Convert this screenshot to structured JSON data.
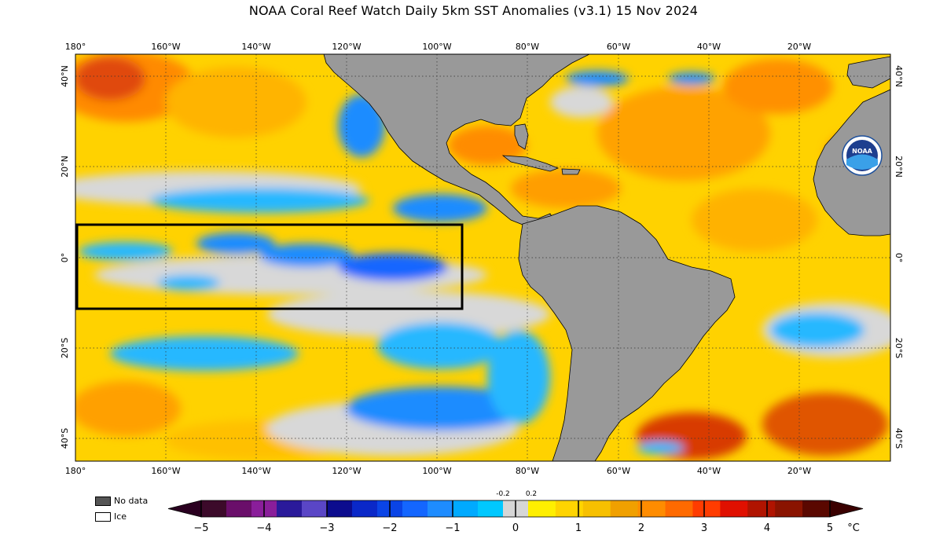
{
  "title": "NOAA Coral Reef Watch Daily 5km SST Anomalies  (v3.1)   15 Nov 2024",
  "logo_text": "NOAA",
  "lon_ticks": [
    "180°",
    "160°W",
    "140°W",
    "120°W",
    "100°W",
    "80°W",
    "60°W",
    "40°W",
    "20°W"
  ],
  "lat_ticks": [
    "40°N",
    "20°N",
    "0°",
    "20°S",
    "40°S"
  ],
  "colorbar": {
    "ticks": [
      "−5",
      "−4",
      "−3",
      "−2",
      "−1",
      "0",
      "1",
      "2",
      "3",
      "4",
      "5"
    ],
    "unit": "°C",
    "neutral_low": "-0.2",
    "neutral_high": "0.2",
    "colors": [
      "#3c0a2a",
      "#6a0e6a",
      "#8a1e9a",
      "#2a1a9a",
      "#5a46c6",
      "#0c0c8e",
      "#0a28c8",
      "#0a44e6",
      "#1466ff",
      "#1e8cff",
      "#00aaff",
      "#00c8ff",
      "#00e2ff",
      "#d6d6d6",
      "#ffef00",
      "#ffd400",
      "#f7c000",
      "#f0a000",
      "#ff8c00",
      "#ff6a00",
      "#ff3c00",
      "#e01000",
      "#b01400",
      "#8a1400",
      "#5a0800"
    ]
  },
  "legend": {
    "no_data": "No data",
    "ice": "Ice"
  },
  "colors": {
    "land": "#999999",
    "no_data": "#555555",
    "ice": "#ffffff",
    "box": "#000000"
  }
}
